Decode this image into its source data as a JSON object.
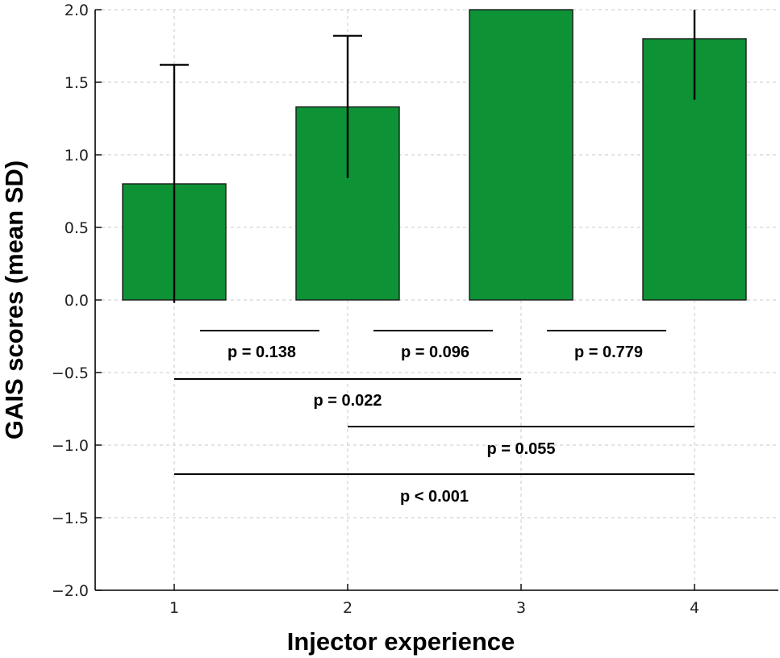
{
  "colors": {
    "bar": "#0e9236",
    "edge": "#1a1a1a"
  },
  "chart_data": {
    "type": "bar",
    "categories": [
      "1",
      "2",
      "3",
      "4"
    ],
    "values": [
      0.8,
      1.33,
      2.0,
      1.8
    ],
    "errors": [
      0.82,
      0.49,
      0.0,
      0.42
    ],
    "xlabel": "Injector experience",
    "ylabel": "GAIS scores (mean SD)",
    "ylim": [
      -2.0,
      2.0
    ],
    "yticks": [
      "−2.0",
      "−1.5",
      "−1.0",
      "−0.5",
      "0.0",
      "0.5",
      "1.0",
      "1.5",
      "2.0"
    ],
    "ytick_values": [
      -2.0,
      -1.5,
      -1.0,
      -0.5,
      0.0,
      0.5,
      1.0,
      1.5,
      2.0
    ],
    "grid": true,
    "comparisons": [
      {
        "from": 1,
        "to": 2,
        "label": "p = 0.138"
      },
      {
        "from": 2,
        "to": 3,
        "label": "p = 0.096"
      },
      {
        "from": 3,
        "to": 4,
        "label": "p = 0.779"
      },
      {
        "from": 1,
        "to": 3,
        "label": "p = 0.022"
      },
      {
        "from": 2,
        "to": 4,
        "label": "p = 0.055"
      },
      {
        "from": 1,
        "to": 4,
        "label": "p < 0.001"
      }
    ]
  }
}
